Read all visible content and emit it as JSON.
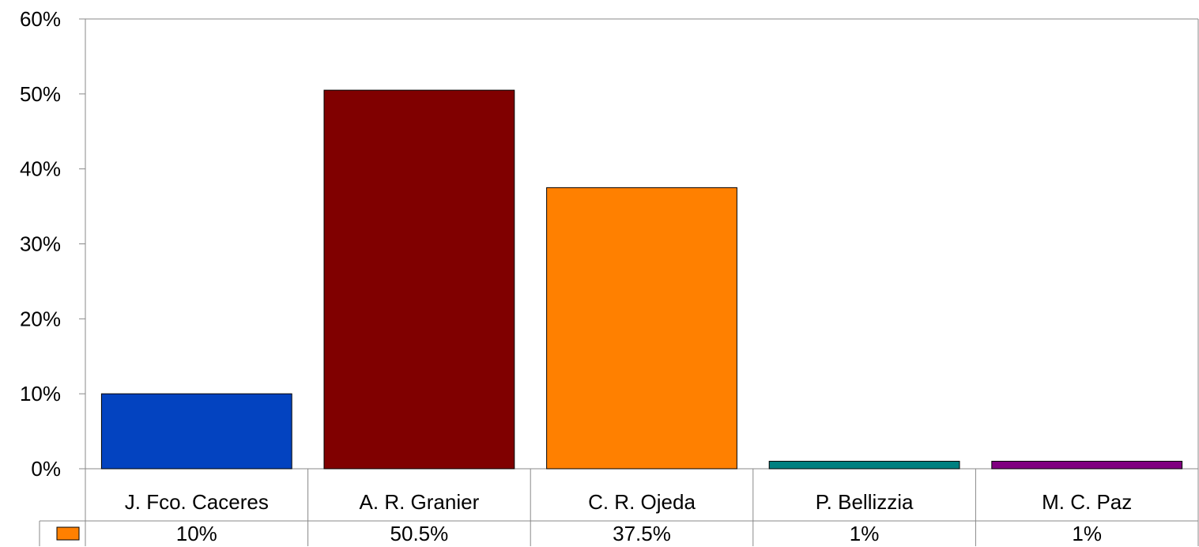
{
  "chart_data": {
    "type": "bar",
    "categories": [
      "J. Fco. Caceres",
      "A. R. Granier",
      "C. R. Ojeda",
      "P. Bellizzia",
      "M. C. Paz"
    ],
    "values": [
      10,
      50.5,
      37.5,
      1,
      1
    ],
    "value_labels": [
      "10%",
      "50.5%",
      "37.5%",
      "1%",
      "1%"
    ],
    "bar_colors": [
      "#0343c0",
      "#800000",
      "#ff8000",
      "#008080",
      "#800080"
    ],
    "legend_color": "#ff8000",
    "yticks": [
      "0%",
      "10%",
      "20%",
      "30%",
      "40%",
      "50%",
      "60%"
    ],
    "ylim": [
      0,
      60
    ],
    "grid": false,
    "legend": "data table below bars",
    "title": "",
    "xlabel": "",
    "ylabel": ""
  }
}
